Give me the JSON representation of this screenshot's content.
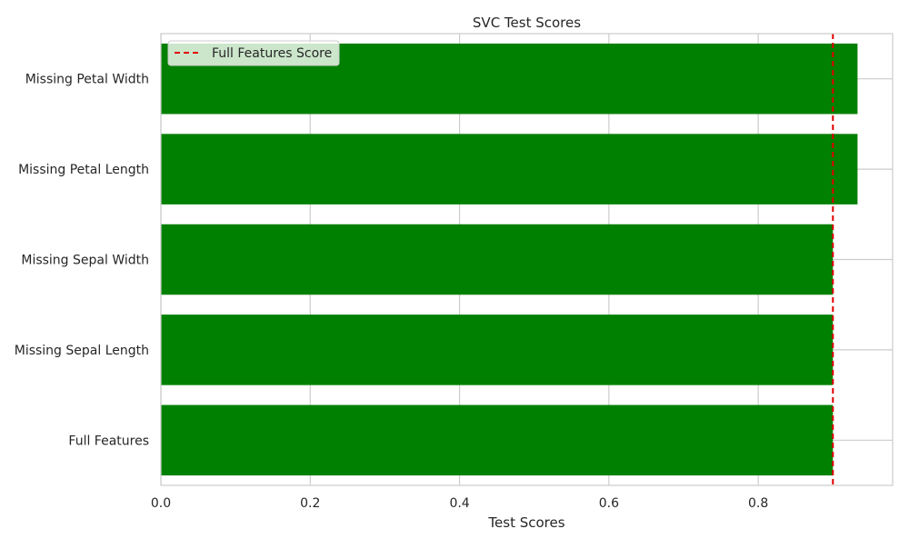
{
  "chart_data": {
    "type": "bar",
    "orientation": "horizontal",
    "title": "SVC Test Scores",
    "xlabel": "Test Scores",
    "ylabel": "",
    "categories": [
      "Full Features",
      "Missing Sepal Length",
      "Missing Sepal Width",
      "Missing Petal Length",
      "Missing Petal Width"
    ],
    "values": [
      0.9,
      0.9,
      0.9,
      0.933,
      0.933
    ],
    "xlim": [
      0,
      0.98
    ],
    "xticks": [
      "0.0",
      "0.2",
      "0.4",
      "0.6",
      "0.8"
    ],
    "reference_line": {
      "label": "Full Features Score",
      "value": 0.9,
      "style": "dashed",
      "color": "#e00000"
    },
    "legend": {
      "position": "top-left",
      "entries": [
        "Full Features Score"
      ]
    },
    "grid": true,
    "colors": {
      "bar": "#008000",
      "grid": "#cccccc",
      "axes": "#cccccc",
      "text": "#262626"
    }
  }
}
